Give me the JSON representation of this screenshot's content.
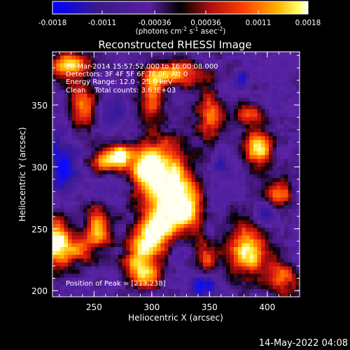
{
  "chart_data": {
    "type": "heatmap",
    "title": "Reconstructed RHESSI Image",
    "xlabel": "Heliocentric X (arcsec)",
    "ylabel": "Heliocentric Y (arcsec)",
    "xlim": [
      214,
      428
    ],
    "ylim": [
      195,
      393
    ],
    "x_ticks": [
      "250",
      "300",
      "350",
      "400"
    ],
    "x_tick_values": [
      250,
      300,
      350,
      400
    ],
    "y_ticks": [
      "200",
      "250",
      "300",
      "350"
    ],
    "y_tick_values": [
      200,
      250,
      300,
      350
    ],
    "colorbar": {
      "ticks": [
        "-0.0018",
        "-0.0011",
        "-0.00036",
        "0.00036",
        "0.0011",
        "0.0018"
      ],
      "tick_values": [
        -0.0018,
        -0.0011,
        -0.00036,
        0.00036,
        0.0011,
        0.0018
      ],
      "range": [
        -0.0018,
        0.0018
      ],
      "unit_parts": [
        "(photons cm",
        "-2",
        " s",
        "-1",
        " asec",
        "-2",
        ")"
      ],
      "colors": [
        "#0000ff",
        "#3a1a8c",
        "#5a1ea0",
        "#000000",
        "#b01010",
        "#ff4000",
        "#ffb000",
        "#ffff60",
        "#ffffff"
      ]
    },
    "annotations": [
      "28-Mar-2014 15:57:52.000 to 16:00:08.000",
      "Detectors: 3F 4F 5F 6F 7F 8F, Att 0",
      "Energy Range: 12.0 - 25.0 keV",
      "Clean    Total counts: 3.63E+03"
    ],
    "peak_label": "Position of Peak = [213,238]",
    "blobs": [
      {
        "x": 312,
        "y": 285,
        "sx": 17,
        "sy": 24,
        "a": 1.0
      },
      {
        "x": 292,
        "y": 300,
        "sx": 10,
        "sy": 12,
        "a": 0.7
      },
      {
        "x": 330,
        "y": 265,
        "sx": 10,
        "sy": 12,
        "a": 0.7
      },
      {
        "x": 303,
        "y": 248,
        "sx": 10,
        "sy": 10,
        "a": 0.85
      },
      {
        "x": 290,
        "y": 234,
        "sx": 9,
        "sy": 8,
        "a": 0.7
      },
      {
        "x": 293,
        "y": 215,
        "sx": 12,
        "sy": 9,
        "a": 0.8
      },
      {
        "x": 262,
        "y": 305,
        "sx": 10,
        "sy": 8,
        "a": 0.75
      },
      {
        "x": 252,
        "y": 250,
        "sx": 9,
        "sy": 11,
        "a": 0.85
      },
      {
        "x": 235,
        "y": 232,
        "sx": 9,
        "sy": 8,
        "a": 0.55
      },
      {
        "x": 218,
        "y": 240,
        "sx": 8,
        "sy": 14,
        "a": 0.95
      },
      {
        "x": 228,
        "y": 382,
        "sx": 14,
        "sy": 8,
        "a": 0.75
      },
      {
        "x": 240,
        "y": 350,
        "sx": 8,
        "sy": 12,
        "a": 0.6
      },
      {
        "x": 300,
        "y": 360,
        "sx": 8,
        "sy": 16,
        "a": 0.6
      },
      {
        "x": 322,
        "y": 375,
        "sx": 18,
        "sy": 7,
        "a": 0.7
      },
      {
        "x": 352,
        "y": 340,
        "sx": 9,
        "sy": 14,
        "a": 0.65
      },
      {
        "x": 385,
        "y": 342,
        "sx": 9,
        "sy": 6,
        "a": 0.6
      },
      {
        "x": 393,
        "y": 315,
        "sx": 9,
        "sy": 11,
        "a": 0.85
      },
      {
        "x": 383,
        "y": 232,
        "sx": 12,
        "sy": 16,
        "a": 0.85
      },
      {
        "x": 410,
        "y": 278,
        "sx": 8,
        "sy": 8,
        "a": 0.6
      },
      {
        "x": 412,
        "y": 210,
        "sx": 10,
        "sy": 10,
        "a": 0.65
      },
      {
        "x": 347,
        "y": 228,
        "sx": 7,
        "sy": 9,
        "a": 0.55
      },
      {
        "x": 273,
        "y": 310,
        "sx": 6,
        "sy": 6,
        "a": 0.6
      }
    ],
    "cold_spots": [
      {
        "x": 222,
        "y": 300,
        "sx": 10,
        "sy": 14,
        "a": 1.0
      },
      {
        "x": 240,
        "y": 255,
        "sx": 6,
        "sy": 6,
        "a": 0.6
      },
      {
        "x": 270,
        "y": 285,
        "sx": 12,
        "sy": 10,
        "a": 0.7
      },
      {
        "x": 345,
        "y": 205,
        "sx": 10,
        "sy": 7,
        "a": 0.9
      },
      {
        "x": 360,
        "y": 300,
        "sx": 8,
        "sy": 8,
        "a": 0.6
      },
      {
        "x": 398,
        "y": 262,
        "sx": 6,
        "sy": 8,
        "a": 0.7
      },
      {
        "x": 378,
        "y": 372,
        "sx": 6,
        "sy": 6,
        "a": 0.6
      },
      {
        "x": 265,
        "y": 345,
        "sx": 8,
        "sy": 8,
        "a": 0.5
      },
      {
        "x": 322,
        "y": 228,
        "sx": 6,
        "sy": 6,
        "a": 0.5
      }
    ]
  },
  "footer": {
    "date": "14-May-2022 04:08"
  }
}
